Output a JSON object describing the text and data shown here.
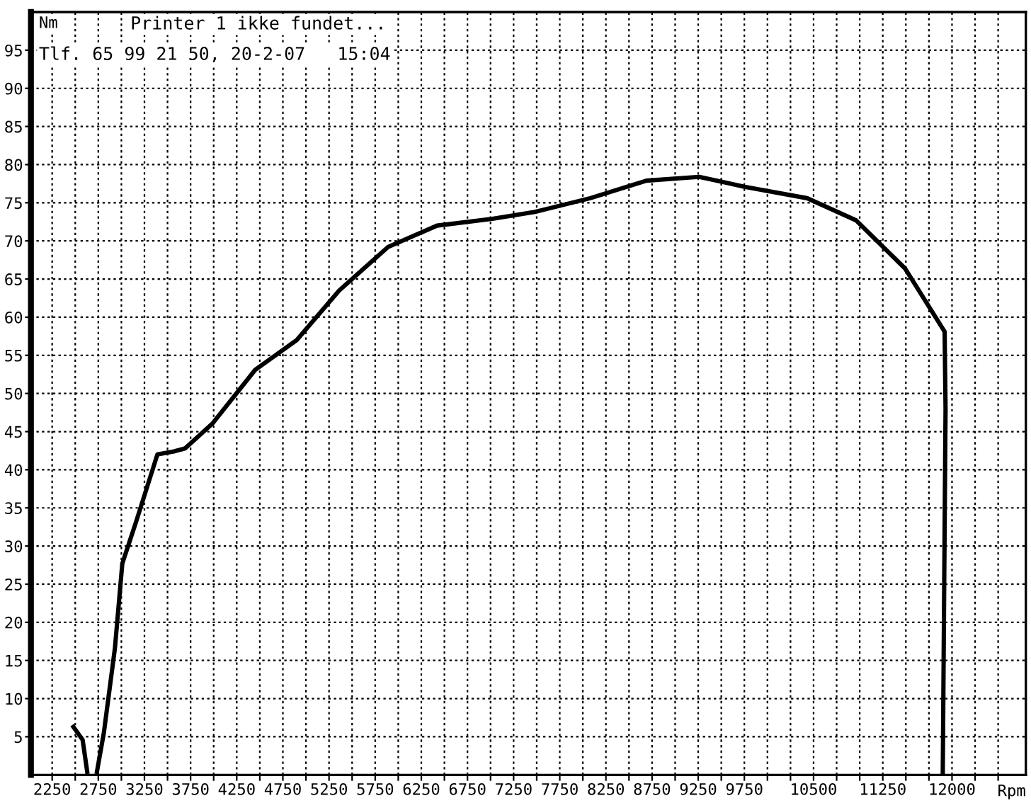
{
  "chart_data": {
    "type": "line",
    "xlabel": "Rpm",
    "ylabel": "Nm",
    "annotations": [
      "Printer 1 ikke fundet...",
      "Tlf. 65 99 21 50, 20-2-07   15:04"
    ],
    "series": [
      {
        "color": "#000000",
        "x": [
          2480,
          2580,
          2630,
          null,
          2735,
          2810,
          2930,
          3010,
          3160,
          3390,
          3570,
          3690,
          3990,
          4450,
          4900,
          5360,
          5890,
          6420,
          7020,
          7480,
          8080,
          8690,
          9260,
          9750,
          10430,
          10960,
          11490,
          11920,
          11930,
          11900
        ],
        "values": [
          6.3,
          4.6,
          0.4,
          null,
          0.4,
          5.5,
          16.6,
          27.7,
          33.2,
          42,
          42.4,
          42.8,
          46.1,
          53.1,
          57,
          63.5,
          69.2,
          72,
          72.9,
          73.8,
          75.6,
          77.9,
          78.4,
          77.1,
          75.6,
          72.7,
          66.4,
          58.1,
          48,
          0.4
        ]
      }
    ],
    "xlim": [
      2020,
      12800
    ],
    "ylim": [
      0,
      100
    ],
    "xticks": [
      2250,
      {
        "value": 2500,
        "label": null
      },
      2750,
      {
        "value": 3000,
        "label": null
      },
      3250,
      {
        "value": 3500,
        "label": null
      },
      3750,
      {
        "value": 4000,
        "label": null
      },
      4250,
      {
        "value": 4500,
        "label": null
      },
      4750,
      {
        "value": 5000,
        "label": null
      },
      5250,
      {
        "value": 5500,
        "label": null
      },
      5750,
      {
        "value": 6000,
        "label": null
      },
      6250,
      {
        "value": 6500,
        "label": null
      },
      6750,
      {
        "value": 7000,
        "label": null
      },
      7250,
      {
        "value": 7500,
        "label": null
      },
      7750,
      {
        "value": 8000,
        "label": null
      },
      8250,
      {
        "value": 8500,
        "label": null
      },
      8750,
      {
        "value": 9000,
        "label": null
      },
      9250,
      {
        "value": 9500,
        "label": null
      },
      9750,
      {
        "value": 10000,
        "label": null
      },
      {
        "value": 10250,
        "label": null
      },
      10500,
      {
        "value": 10750,
        "label": null
      },
      {
        "value": 11000,
        "label": null
      },
      11250,
      {
        "value": 11500,
        "label": null
      },
      {
        "value": 11750,
        "label": null
      },
      12000,
      {
        "value": 12250,
        "label": null
      },
      {
        "value": 12500,
        "label": null
      }
    ],
    "yticks": [
      5,
      10,
      15,
      20,
      25,
      30,
      35,
      40,
      45,
      50,
      55,
      60,
      65,
      70,
      75,
      80,
      85,
      90,
      95
    ],
    "grid": true,
    "line_style": "solid"
  }
}
